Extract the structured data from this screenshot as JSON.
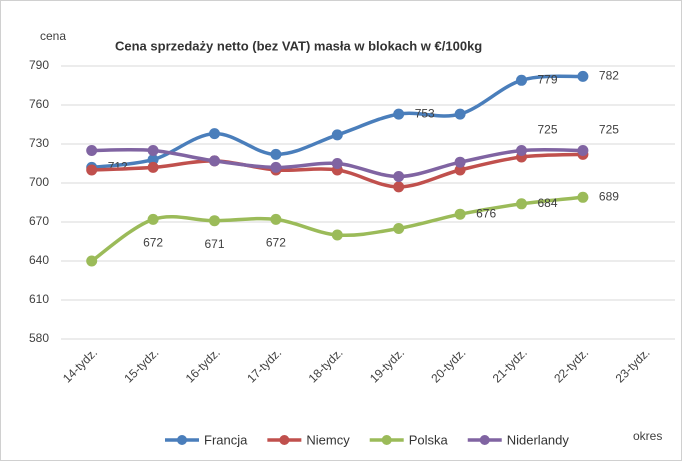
{
  "chart_data": {
    "type": "line",
    "title": "Cena sprzedaży netto (bez VAT) masła w blokach w €/100kg",
    "y_label": "cena",
    "x_label": "okres",
    "categories": [
      "14-tydz.",
      "15-tydz.",
      "16-tydz.",
      "17-tydz.",
      "18-tydz.",
      "19-tydz.",
      "20-tydz.",
      "21-tydz.",
      "22-tydz.",
      "23-tydz."
    ],
    "series": [
      {
        "name": "Francja",
        "color": "#4a7ebb",
        "values": [
          712,
          718,
          738,
          722,
          737,
          753,
          753,
          779,
          782,
          null
        ],
        "value_labels": [
          "712",
          null,
          null,
          null,
          null,
          "753",
          null,
          "779",
          "782",
          null
        ]
      },
      {
        "name": "Niemcy",
        "color": "#c0504d",
        "values": [
          710,
          712,
          717,
          710,
          710,
          697,
          710,
          720,
          722,
          null
        ],
        "value_labels": [
          null,
          null,
          null,
          null,
          null,
          null,
          null,
          null,
          null,
          null
        ]
      },
      {
        "name": "Polska",
        "color": "#9bbb59",
        "values": [
          640,
          672,
          671,
          672,
          660,
          665,
          676,
          684,
          689,
          null
        ],
        "value_labels": [
          null,
          "672",
          "671",
          "672",
          null,
          null,
          "676",
          "684",
          "689",
          null
        ]
      },
      {
        "name": "Niderlandy",
        "color": "#8064a2",
        "values": [
          725,
          725,
          717,
          712,
          715,
          705,
          716,
          725,
          725,
          null
        ],
        "value_labels": [
          null,
          null,
          null,
          null,
          null,
          null,
          null,
          "725",
          "725",
          null
        ]
      }
    ],
    "ylim": [
      580,
      790
    ],
    "yticks": [
      580,
      610,
      640,
      670,
      700,
      730,
      760,
      790
    ],
    "grid": true,
    "legend": "bottom"
  }
}
